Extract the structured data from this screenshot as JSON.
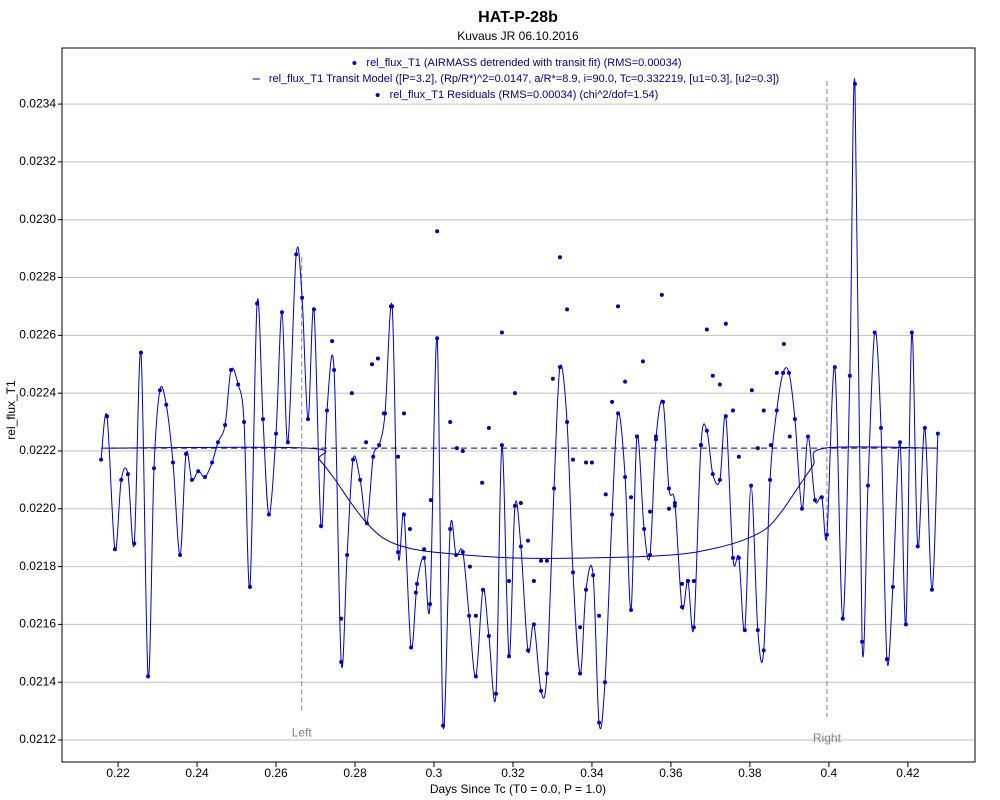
{
  "chart_data": {
    "type": "scatter",
    "title": "HAT-P-28b",
    "subtitle": "Kuvaus JR 06.10.2016",
    "x_label": "Days Since Tc (T0 = 0.0, P = 1.0)",
    "y_label": "rel_flux_T1",
    "xlim": [
      0.2058,
      0.437
    ],
    "ylim": [
      0.021124,
      0.023594
    ],
    "xticks": [
      0.22,
      0.24,
      0.26,
      0.28,
      0.3,
      0.32,
      0.34,
      0.36,
      0.38,
      0.4,
      0.42
    ],
    "yticks": [
      0.0212,
      0.0214,
      0.0216,
      0.0218,
      {
        "value": 0.022,
        "label": "0.0220"
      },
      0.0222,
      0.0224,
      0.0226,
      0.0228,
      {
        "value": 0.023,
        "label": "0.0230"
      },
      0.0232,
      0.0234
    ],
    "grid": true,
    "series": [
      {
        "name": "rel_flux_T1 (AIRMASS detrended with transit fit) (RMS=0.00034)",
        "color": "#0000c8",
        "marker": true,
        "line": true,
        "x": [
          0.2157,
          0.2172,
          0.2192,
          0.2208,
          0.2225,
          0.2241,
          0.2258,
          0.2276,
          0.2291,
          0.2306,
          0.2322,
          0.2339,
          0.2357,
          0.2372,
          0.2387,
          0.2403,
          0.242,
          0.2438,
          0.2453,
          0.2471,
          0.2486,
          0.2504,
          0.2519,
          0.2534,
          0.2552,
          0.2567,
          0.2582,
          0.26,
          0.2615,
          0.263,
          0.2651,
          0.2666,
          0.2681,
          0.2696,
          0.2714,
          0.2729,
          0.2747,
          0.2765,
          0.278,
          0.2795,
          0.2813,
          0.283,
          0.2846,
          0.2861,
          0.2876,
          0.2894,
          0.2909,
          0.2924,
          0.2942,
          0.2957,
          0.2975,
          0.299,
          0.3008,
          0.3023,
          0.3041,
          0.3056,
          0.3073,
          0.3089,
          0.3106,
          0.3124,
          0.3139,
          0.3157,
          0.3172,
          0.319,
          0.3205,
          0.322,
          0.3238,
          0.3253,
          0.3271,
          0.3286,
          0.3304,
          0.3319,
          0.3337,
          0.3352,
          0.337,
          0.3385,
          0.3403,
          0.3418,
          0.3433,
          0.3451,
          0.3466,
          0.3484,
          0.3499,
          0.3514,
          0.3532,
          0.3547,
          0.3562,
          0.358,
          0.3595,
          0.361,
          0.3628,
          0.3643,
          0.3658,
          0.3676,
          0.3691,
          0.3706,
          0.3724,
          0.3739,
          0.3757,
          0.3772,
          0.3787,
          0.3803,
          0.382,
          0.3835,
          0.3851,
          0.3868,
          0.3884,
          0.3899,
          0.3914,
          0.3932,
          0.3947,
          0.3965,
          0.3982,
          0.3995,
          0.4015,
          0.4035,
          0.4053,
          0.4066,
          0.4084,
          0.4099,
          0.4116,
          0.4132,
          0.4147,
          0.4162,
          0.418,
          0.4195,
          0.421,
          0.4225,
          0.4243,
          0.4261,
          0.4276
        ],
        "values": [
          0.02217,
          0.02232,
          0.02186,
          0.0221,
          0.02212,
          0.02188,
          0.02254,
          0.02142,
          0.02214,
          0.02241,
          0.02236,
          0.02216,
          0.02184,
          0.02219,
          0.0221,
          0.02213,
          0.02211,
          0.02216,
          0.02223,
          0.02229,
          0.02248,
          0.02243,
          0.0223,
          0.02173,
          0.02271,
          0.02231,
          0.02198,
          0.02226,
          0.02268,
          0.02223,
          0.02288,
          0.02273,
          0.02231,
          0.02269,
          0.02194,
          0.02234,
          0.02248,
          0.02147,
          0.02184,
          0.02217,
          0.0221,
          0.02195,
          0.02218,
          0.02222,
          0.02233,
          0.0227,
          0.02185,
          0.02198,
          0.02152,
          0.02174,
          0.02183,
          0.02167,
          0.02259,
          0.02125,
          0.02193,
          0.02184,
          0.02185,
          0.02163,
          0.02142,
          0.02172,
          0.02156,
          0.02136,
          0.02222,
          0.02149,
          0.02201,
          0.02187,
          0.02151,
          0.0216,
          0.02137,
          0.02143,
          0.02207,
          0.02249,
          0.0223,
          0.02178,
          0.02143,
          0.02172,
          0.02177,
          0.02126,
          0.0214,
          0.02198,
          0.02233,
          0.02211,
          0.02165,
          0.02225,
          0.02193,
          0.02184,
          0.02224,
          0.02237,
          0.02207,
          0.02202,
          0.02166,
          0.02175,
          0.02159,
          0.02222,
          0.02227,
          0.02212,
          0.0221,
          0.02232,
          0.02183,
          0.02183,
          0.02158,
          0.02208,
          0.02158,
          0.02151,
          0.0221,
          0.02234,
          0.02247,
          0.02247,
          0.02231,
          0.022,
          0.02225,
          0.02203,
          0.02204,
          0.02191,
          0.02249,
          0.02162,
          0.02246,
          0.02347,
          0.02154,
          0.02208,
          0.02261,
          0.02228,
          0.02148,
          0.02173,
          0.02223,
          0.0216,
          0.02261,
          0.02187,
          0.02228,
          0.02172,
          0.02226
        ]
      },
      {
        "name": "rel_flux_T1 Transit Model ([P=3.2], (Rp/R*)^2=0.0147, a/R*=8.9, i=90.0, Tc=0.332219, [u1=0.3], [u2=0.3])",
        "color": "#0000a0",
        "marker": false,
        "line": true,
        "x": [
          0.217,
          0.268,
          0.271,
          0.275,
          0.279,
          0.283,
          0.287,
          0.292,
          0.3,
          0.32,
          0.34,
          0.36,
          0.37,
          0.378,
          0.384,
          0.388,
          0.392,
          0.396,
          0.399,
          0.427
        ],
        "values": [
          0.02221,
          0.02221,
          0.02217,
          0.0221,
          0.02202,
          0.02195,
          0.0219,
          0.02187,
          0.02185,
          0.02183,
          0.02183,
          0.02184,
          0.02186,
          0.02189,
          0.02193,
          0.02199,
          0.02207,
          0.02215,
          0.02221,
          0.02221
        ]
      },
      {
        "name": "rel_flux_T1 Residuals (RMS=0.00034) (chi^2/dof=1.54)",
        "color": "#0000a0",
        "marker": true,
        "line": false,
        "x": [
          0.2742,
          0.2765,
          0.2792,
          0.2828,
          0.2843,
          0.2858,
          0.2873,
          0.2891,
          0.2909,
          0.2924,
          0.2939,
          0.2954,
          0.2975,
          0.2992,
          0.3008,
          0.3041,
          0.3058,
          0.3073,
          0.3091,
          0.3106,
          0.3122,
          0.3139,
          0.3172,
          0.319,
          0.3205,
          0.322,
          0.3238,
          0.3253,
          0.3271,
          0.3286,
          0.3301,
          0.3319,
          0.3337,
          0.3352,
          0.337,
          0.3385,
          0.34,
          0.3418,
          0.3435,
          0.3451,
          0.3466,
          0.3484,
          0.3499,
          0.3514,
          0.3529,
          0.3547,
          0.3562,
          0.3577,
          0.3595,
          0.361,
          0.3628,
          0.3643,
          0.3658,
          0.3676,
          0.3691,
          0.3706,
          0.3724,
          0.3739,
          0.3757,
          0.3772,
          0.3805,
          0.382,
          0.3835,
          0.3853,
          0.3868,
          0.3886,
          0.3901
        ],
        "values": [
          0.02258,
          0.02162,
          0.0224,
          0.02223,
          0.0225,
          0.02252,
          0.02233,
          0.0227,
          0.02218,
          0.02233,
          0.02193,
          0.02171,
          0.02186,
          0.02203,
          0.02296,
          0.0223,
          0.02221,
          0.0222,
          0.0218,
          0.02163,
          0.02209,
          0.02228,
          0.02261,
          0.02175,
          0.0224,
          0.02202,
          0.02189,
          0.02175,
          0.02182,
          0.02182,
          0.02245,
          0.02287,
          0.02269,
          0.02217,
          0.02159,
          0.02216,
          0.02216,
          0.02163,
          0.02205,
          0.02237,
          0.0227,
          0.02244,
          0.02204,
          0.02225,
          0.02251,
          0.02199,
          0.02225,
          0.02274,
          0.022,
          0.02201,
          0.02174,
          0.02175,
          0.02175,
          0.02222,
          0.02262,
          0.02246,
          0.02243,
          0.02264,
          0.02234,
          0.02218,
          0.02241,
          0.02221,
          0.02234,
          0.02222,
          0.02247,
          0.02257,
          0.02225
        ]
      }
    ],
    "hlines": [
      {
        "value": 0.02221,
        "style": "dashed"
      }
    ],
    "vlines": [
      {
        "x": 0.2665,
        "label": "Left",
        "ymin": 0.0213,
        "ymax": 0.02287
      },
      {
        "x": 0.3995,
        "label": "Right",
        "ymin": 0.02128,
        "ymax": 0.02348
      }
    ]
  }
}
